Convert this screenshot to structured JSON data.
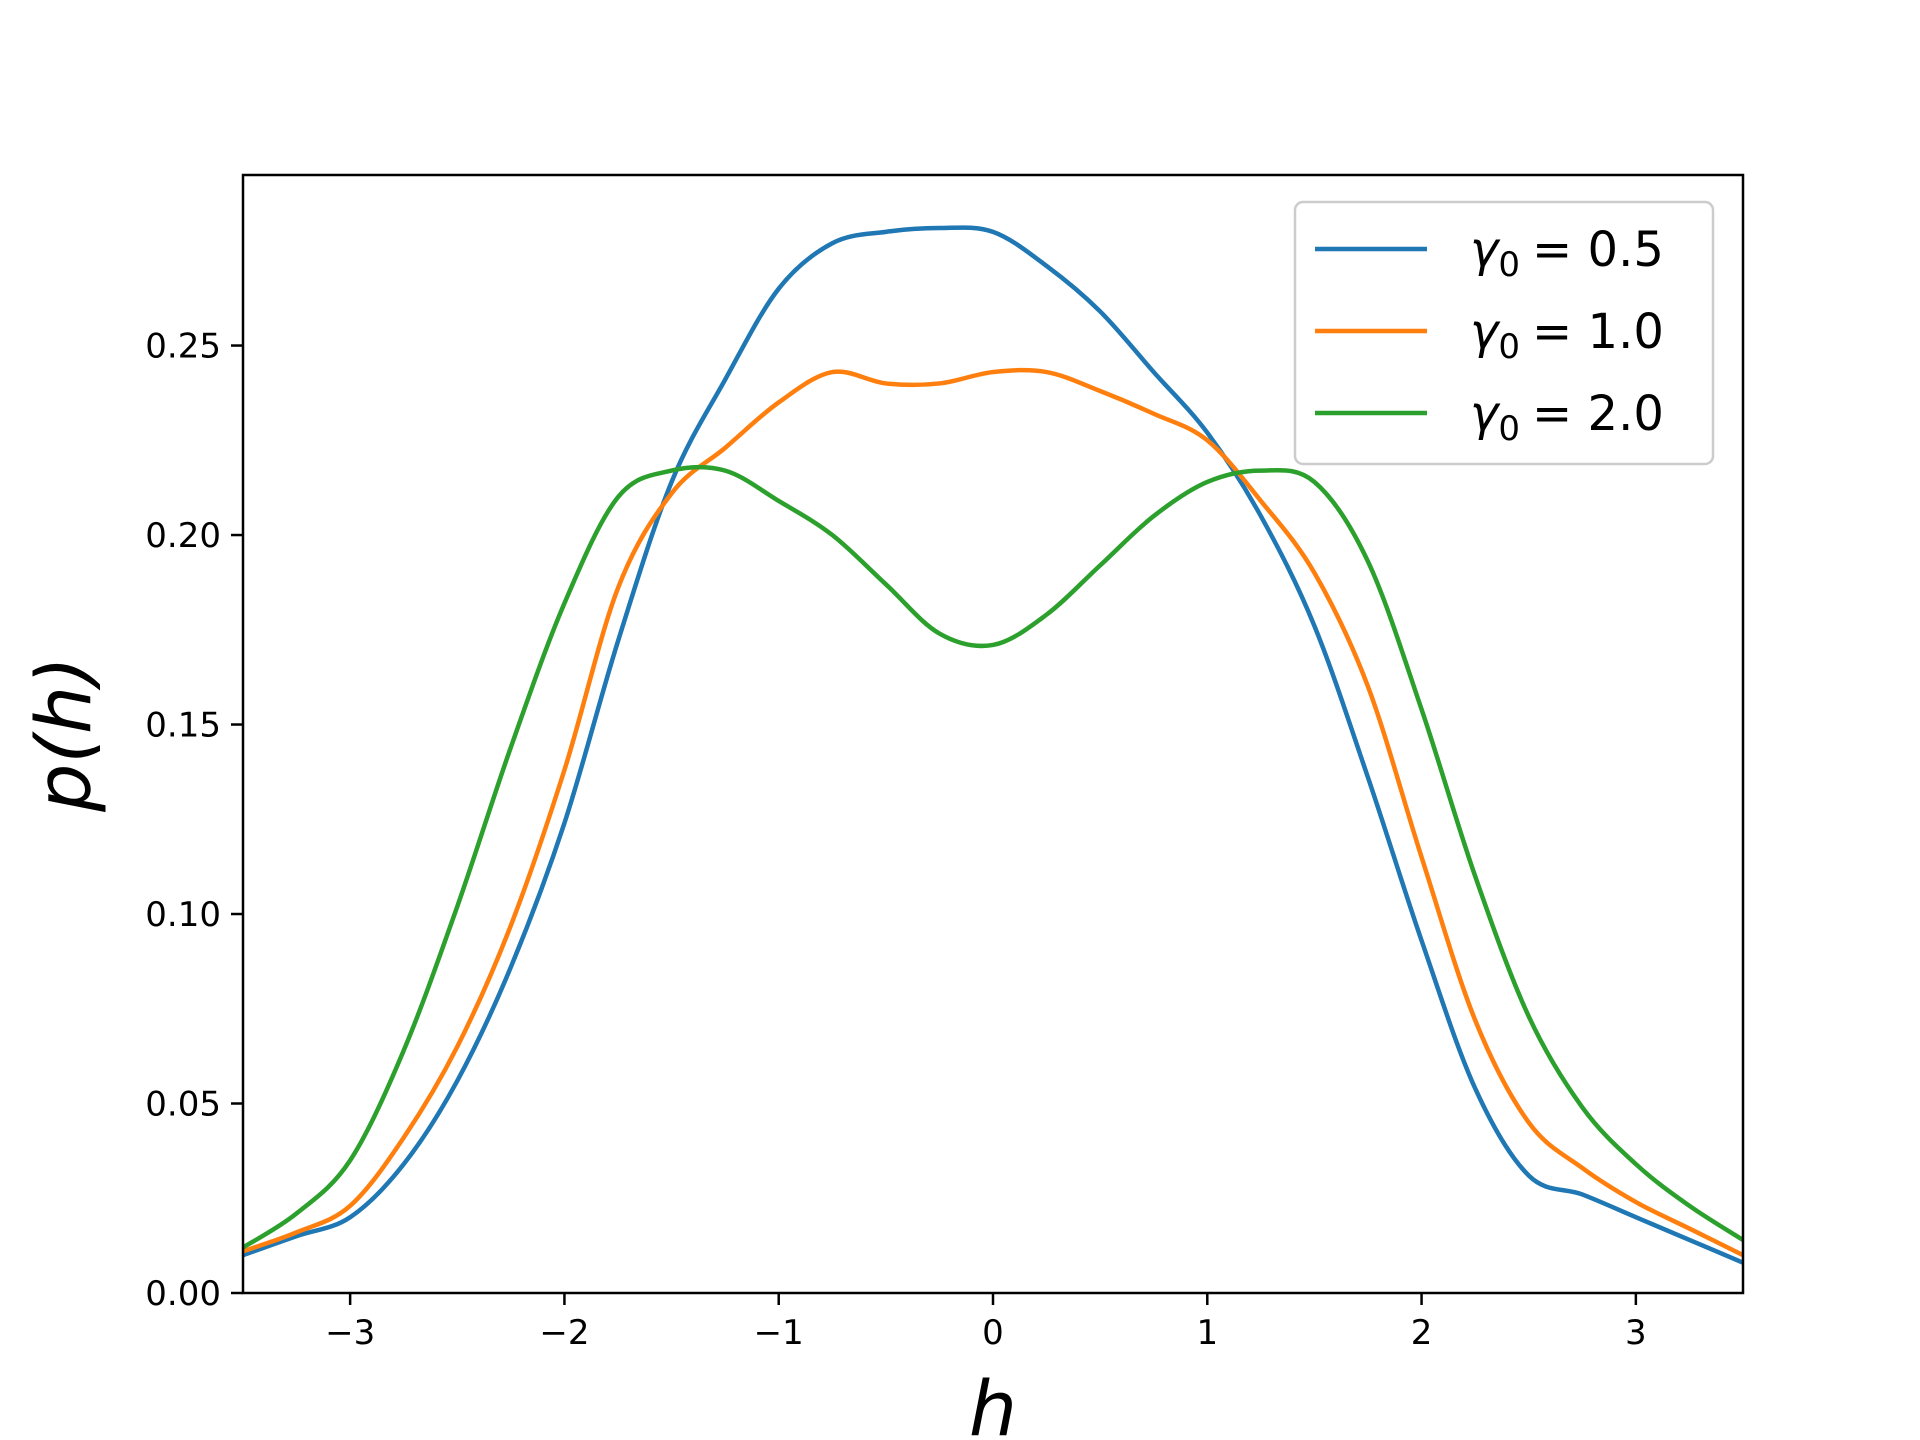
{
  "chart_data": {
    "type": "line",
    "title": "",
    "xlabel": "h",
    "ylabel": "p(h)",
    "xlim": [
      -3.5,
      3.5
    ],
    "ylim": [
      0,
      0.295
    ],
    "xticks": [
      -3,
      -2,
      -1,
      0,
      1,
      2,
      3
    ],
    "xtick_labels": [
      "−3",
      "−2",
      "−1",
      "0",
      "1",
      "2",
      "3"
    ],
    "yticks": [
      0.0,
      0.05,
      0.1,
      0.15,
      0.2,
      0.25
    ],
    "ytick_labels": [
      "0.00",
      "0.05",
      "0.10",
      "0.15",
      "0.20",
      "0.25"
    ],
    "grid": false,
    "legend_position": "top-right",
    "x": [
      -3.5,
      -3.25,
      -3.0,
      -2.75,
      -2.5,
      -2.25,
      -2.0,
      -1.75,
      -1.5,
      -1.25,
      -1.0,
      -0.75,
      -0.5,
      -0.25,
      0.0,
      0.25,
      0.5,
      0.75,
      1.0,
      1.25,
      1.5,
      1.75,
      2.0,
      2.25,
      2.5,
      2.75,
      3.0,
      3.25,
      3.5
    ],
    "series": [
      {
        "name": "γ₀ = 0.5",
        "name_symbol": "γ",
        "name_subscript": "0",
        "name_value": "= 0.5",
        "color": "#1f77b4",
        "values": [
          0.01,
          0.015,
          0.02,
          0.034,
          0.056,
          0.086,
          0.124,
          0.172,
          0.214,
          0.241,
          0.265,
          0.277,
          0.28,
          0.281,
          0.28,
          0.271,
          0.259,
          0.243,
          0.227,
          0.205,
          0.176,
          0.136,
          0.093,
          0.054,
          0.031,
          0.026,
          0.02,
          0.014,
          0.008
        ]
      },
      {
        "name": "γ₀ = 1.0",
        "name_symbol": "γ",
        "name_subscript": "0",
        "name_value": "= 1.0",
        "color": "#ff7f0e",
        "values": [
          0.011,
          0.016,
          0.023,
          0.041,
          0.065,
          0.097,
          0.138,
          0.186,
          0.211,
          0.223,
          0.235,
          0.243,
          0.24,
          0.24,
          0.243,
          0.243,
          0.238,
          0.232,
          0.225,
          0.209,
          0.19,
          0.16,
          0.115,
          0.072,
          0.045,
          0.033,
          0.024,
          0.017,
          0.01
        ]
      },
      {
        "name": "γ₀ = 2.0",
        "name_symbol": "γ",
        "name_subscript": "0",
        "name_value": "= 2.0",
        "color": "#2ca02c",
        "values": [
          0.012,
          0.021,
          0.035,
          0.064,
          0.102,
          0.144,
          0.182,
          0.21,
          0.217,
          0.217,
          0.209,
          0.2,
          0.187,
          0.174,
          0.171,
          0.179,
          0.192,
          0.205,
          0.214,
          0.217,
          0.214,
          0.193,
          0.154,
          0.11,
          0.073,
          0.049,
          0.034,
          0.023,
          0.014
        ]
      }
    ]
  }
}
